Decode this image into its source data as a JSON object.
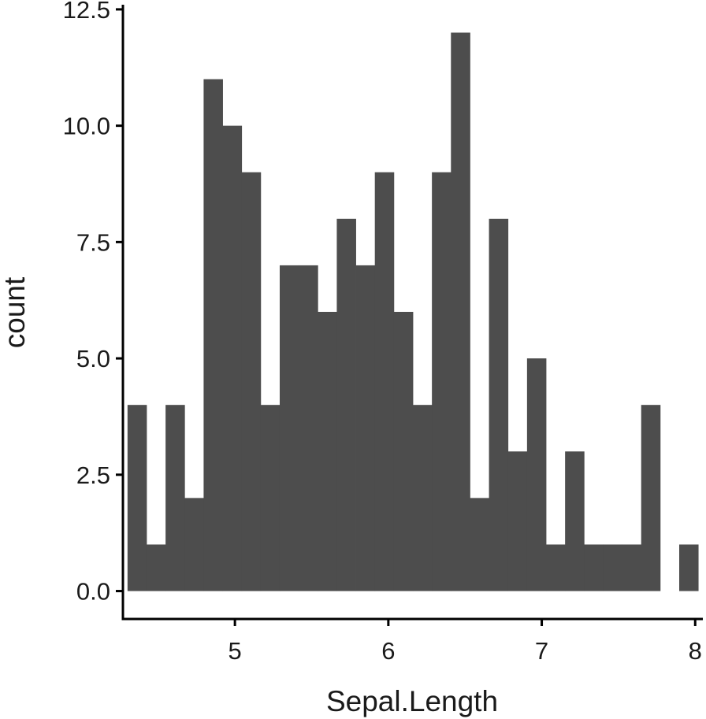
{
  "chart_data": {
    "type": "bar",
    "subtype": "histogram",
    "xlabel": "Sepal.Length",
    "ylabel": "count",
    "xlim": [
      4.27,
      8.05
    ],
    "ylim": [
      -0.6,
      12.6
    ],
    "binwidth": 0.124,
    "x_ticks": [
      5,
      6,
      7,
      8
    ],
    "x_tick_labels": [
      "5",
      "6",
      "7",
      "8"
    ],
    "y_ticks": [
      0,
      2.5,
      5,
      7.5,
      10,
      12.5
    ],
    "y_tick_labels": [
      "0.0",
      "2.5",
      "5.0",
      "7.5",
      "10.0",
      "12.5"
    ],
    "bins": [
      {
        "x0": 4.3,
        "x1": 4.424,
        "count": 4
      },
      {
        "x0": 4.424,
        "x1": 4.548,
        "count": 1
      },
      {
        "x0": 4.548,
        "x1": 4.672,
        "count": 4
      },
      {
        "x0": 4.672,
        "x1": 4.796,
        "count": 2
      },
      {
        "x0": 4.796,
        "x1": 4.92,
        "count": 11
      },
      {
        "x0": 4.92,
        "x1": 5.044,
        "count": 10
      },
      {
        "x0": 5.044,
        "x1": 5.168,
        "count": 9
      },
      {
        "x0": 5.168,
        "x1": 5.292,
        "count": 4
      },
      {
        "x0": 5.292,
        "x1": 5.416,
        "count": 7
      },
      {
        "x0": 5.416,
        "x1": 5.54,
        "count": 7
      },
      {
        "x0": 5.54,
        "x1": 5.664,
        "count": 6
      },
      {
        "x0": 5.664,
        "x1": 5.788,
        "count": 8
      },
      {
        "x0": 5.788,
        "x1": 5.912,
        "count": 7
      },
      {
        "x0": 5.912,
        "x1": 6.036,
        "count": 9
      },
      {
        "x0": 6.036,
        "x1": 6.16,
        "count": 6
      },
      {
        "x0": 6.16,
        "x1": 6.284,
        "count": 4
      },
      {
        "x0": 6.284,
        "x1": 6.408,
        "count": 9
      },
      {
        "x0": 6.408,
        "x1": 6.532,
        "count": 12
      },
      {
        "x0": 6.532,
        "x1": 6.656,
        "count": 2
      },
      {
        "x0": 6.656,
        "x1": 6.78,
        "count": 8
      },
      {
        "x0": 6.78,
        "x1": 6.904,
        "count": 3
      },
      {
        "x0": 6.904,
        "x1": 7.028,
        "count": 5
      },
      {
        "x0": 7.028,
        "x1": 7.152,
        "count": 1
      },
      {
        "x0": 7.152,
        "x1": 7.276,
        "count": 3
      },
      {
        "x0": 7.276,
        "x1": 7.4,
        "count": 1
      },
      {
        "x0": 7.4,
        "x1": 7.524,
        "count": 1
      },
      {
        "x0": 7.524,
        "x1": 7.648,
        "count": 1
      },
      {
        "x0": 7.648,
        "x1": 7.772,
        "count": 4
      },
      {
        "x0": 7.772,
        "x1": 7.896,
        "count": 0
      },
      {
        "x0": 7.896,
        "x1": 8.02,
        "count": 1
      }
    ],
    "bar_color": "#4d4d4d",
    "axis_color": "#000000",
    "grid": false,
    "legend": "none"
  }
}
